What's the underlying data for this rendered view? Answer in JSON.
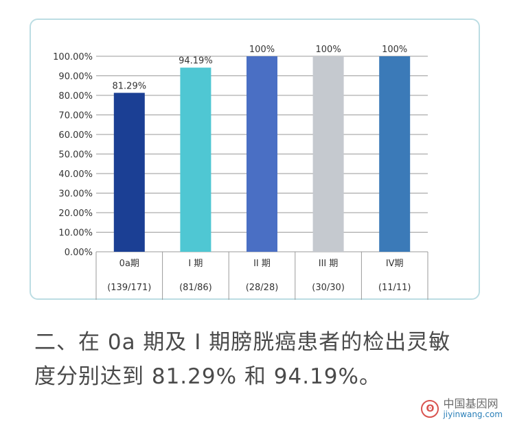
{
  "chart_data": {
    "type": "bar",
    "categories": [
      {
        "label": "0a期",
        "sublabel": "(139/171)"
      },
      {
        "label": "I 期",
        "sublabel": "(81/86)"
      },
      {
        "label": "II 期",
        "sublabel": "(28/28)"
      },
      {
        "label": "III 期",
        "sublabel": "(30/30)"
      },
      {
        "label": "IV期",
        "sublabel": "(11/11)"
      }
    ],
    "values": [
      81.29,
      94.19,
      100,
      100,
      100
    ],
    "value_labels": [
      "81.29%",
      "94.19%",
      "100%",
      "100%",
      "100%"
    ],
    "colors": [
      "#1b3f94",
      "#4fc7d3",
      "#4a6fc4",
      "#c5c9cf",
      "#3b7ab8"
    ],
    "yticks": [
      "0.00%",
      "10.00%",
      "20.00%",
      "30.00%",
      "40.00%",
      "50.00%",
      "60.00%",
      "70.00%",
      "80.00%",
      "90.00%",
      "100.00%"
    ],
    "ylim": [
      0,
      100
    ],
    "grid": true,
    "title": "",
    "xlabel": "",
    "ylabel": ""
  },
  "caption": {
    "line1": "二、在 0a 期及 I 期膀胱癌患者的检出灵敏",
    "line2": "度分别达到 81.29% 和 94.19%。"
  },
  "watermark": {
    "name": "中国基因网",
    "url": "jiyinwang.com"
  },
  "colors": {
    "frame_border": "#bcdde3",
    "grid": "#9a9a9a",
    "text": "#333333"
  }
}
